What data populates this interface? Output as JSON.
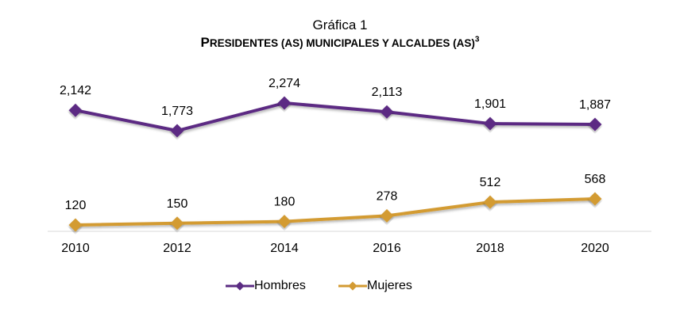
{
  "caption": "Gráfica 1",
  "title": {
    "part1": "P",
    "part2": "RESIDENTES (AS) MUNICIPALES Y ALCALDES (AS)",
    "superscript": "3"
  },
  "chart_data": {
    "type": "line",
    "x": [
      "2010",
      "2012",
      "2014",
      "2016",
      "2018",
      "2020"
    ],
    "series": [
      {
        "name": "Hombres",
        "values": [
          2142,
          1773,
          2274,
          2113,
          1901,
          1887
        ],
        "labels": [
          "2,142",
          "1,773",
          "2,274",
          "2,113",
          "1,901",
          "1,887"
        ],
        "color": "#5b2c83"
      },
      {
        "name": "Mujeres",
        "values": [
          120,
          150,
          180,
          278,
          512,
          568
        ],
        "labels": [
          "120",
          "150",
          "180",
          "278",
          "512",
          "568"
        ],
        "color": "#d39b33"
      }
    ],
    "grid": false,
    "legend_position": "bottom"
  }
}
